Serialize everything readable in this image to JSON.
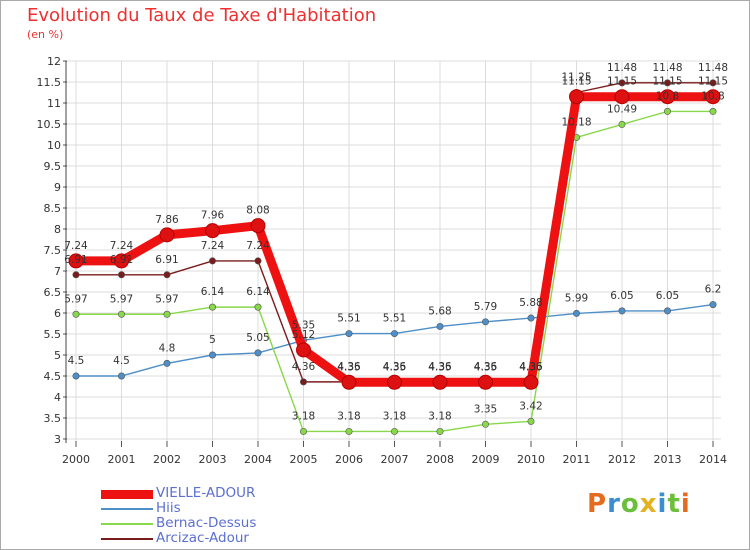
{
  "title": "Evolution du Taux de Taxe d'Habitation",
  "subtitle": "(en %)",
  "logo_text": "Proxiti",
  "chart_data": {
    "type": "line",
    "title": "Evolution du Taux de Taxe d'Habitation",
    "ylabel": "(en %)",
    "ylim": [
      3,
      12
    ],
    "yticks": [
      "3",
      "3.5",
      "4",
      "4.5",
      "5",
      "5.5",
      "6",
      "6.5",
      "7",
      "7.5",
      "8",
      "8.5",
      "9",
      "9.5",
      "10",
      "10.5",
      "11",
      "11.5",
      "12"
    ],
    "categories": [
      "2000",
      "2001",
      "2002",
      "2003",
      "2004",
      "2005",
      "2006",
      "2007",
      "2008",
      "2009",
      "2010",
      "2011",
      "2012",
      "2013",
      "2014"
    ],
    "grid": true,
    "legend_position": "bottom-left",
    "series": [
      {
        "name": "VIELLE-ADOUR",
        "color": "#ee1111",
        "values": [
          7.24,
          7.24,
          7.86,
          7.96,
          8.08,
          5.12,
          4.35,
          4.35,
          4.35,
          4.35,
          4.35,
          11.15,
          11.15,
          11.15,
          11.15
        ],
        "labels": [
          "7.24",
          "7.24",
          "7.86",
          "7.96",
          "8.08",
          "5.12",
          "4.35",
          "4.35",
          "4.35",
          "4.35",
          "4.35",
          "11.15",
          "11.15",
          "11.15",
          "11.15"
        ]
      },
      {
        "name": "Hiis",
        "color": "#4f8fc8",
        "values": [
          4.5,
          4.5,
          4.8,
          5,
          5.05,
          5.35,
          5.51,
          5.51,
          5.68,
          5.79,
          5.88,
          5.99,
          6.05,
          6.05,
          6.2
        ],
        "labels": [
          "4.5",
          "4.5",
          "4.8",
          "5",
          "5.05",
          "5.35",
          "5.51",
          "5.51",
          "5.68",
          "5.79",
          "5.88",
          "5.99",
          "6.05",
          "6.05",
          "6.2"
        ]
      },
      {
        "name": "Bernac-Dessus",
        "color": "#88d84a",
        "values": [
          5.97,
          5.97,
          5.97,
          6.14,
          6.14,
          3.18,
          3.18,
          3.18,
          3.18,
          3.35,
          3.42,
          10.18,
          10.49,
          10.8,
          10.8
        ],
        "labels": [
          "5.97",
          "5.97",
          "5.97",
          "6.14",
          "6.14",
          "3.18",
          "3.18",
          "3.18",
          "3.18",
          "3.35",
          "3.42",
          "10.18",
          "10.49",
          "10.8",
          "10.8"
        ]
      },
      {
        "name": "Arcizac-Adour",
        "color": "#7a1c1c",
        "values": [
          6.91,
          6.91,
          6.91,
          7.24,
          7.24,
          4.36,
          4.36,
          4.36,
          4.36,
          4.36,
          4.36,
          11.25,
          11.48,
          11.48,
          11.48
        ],
        "labels": [
          "6.91",
          "6.91",
          "6.91",
          "7.24",
          "7.24",
          "4.36",
          "4.36",
          "4.36",
          "4.36",
          "4.36",
          "4.36",
          "11.25",
          "11.48",
          "11.48",
          "11.48"
        ]
      }
    ]
  }
}
